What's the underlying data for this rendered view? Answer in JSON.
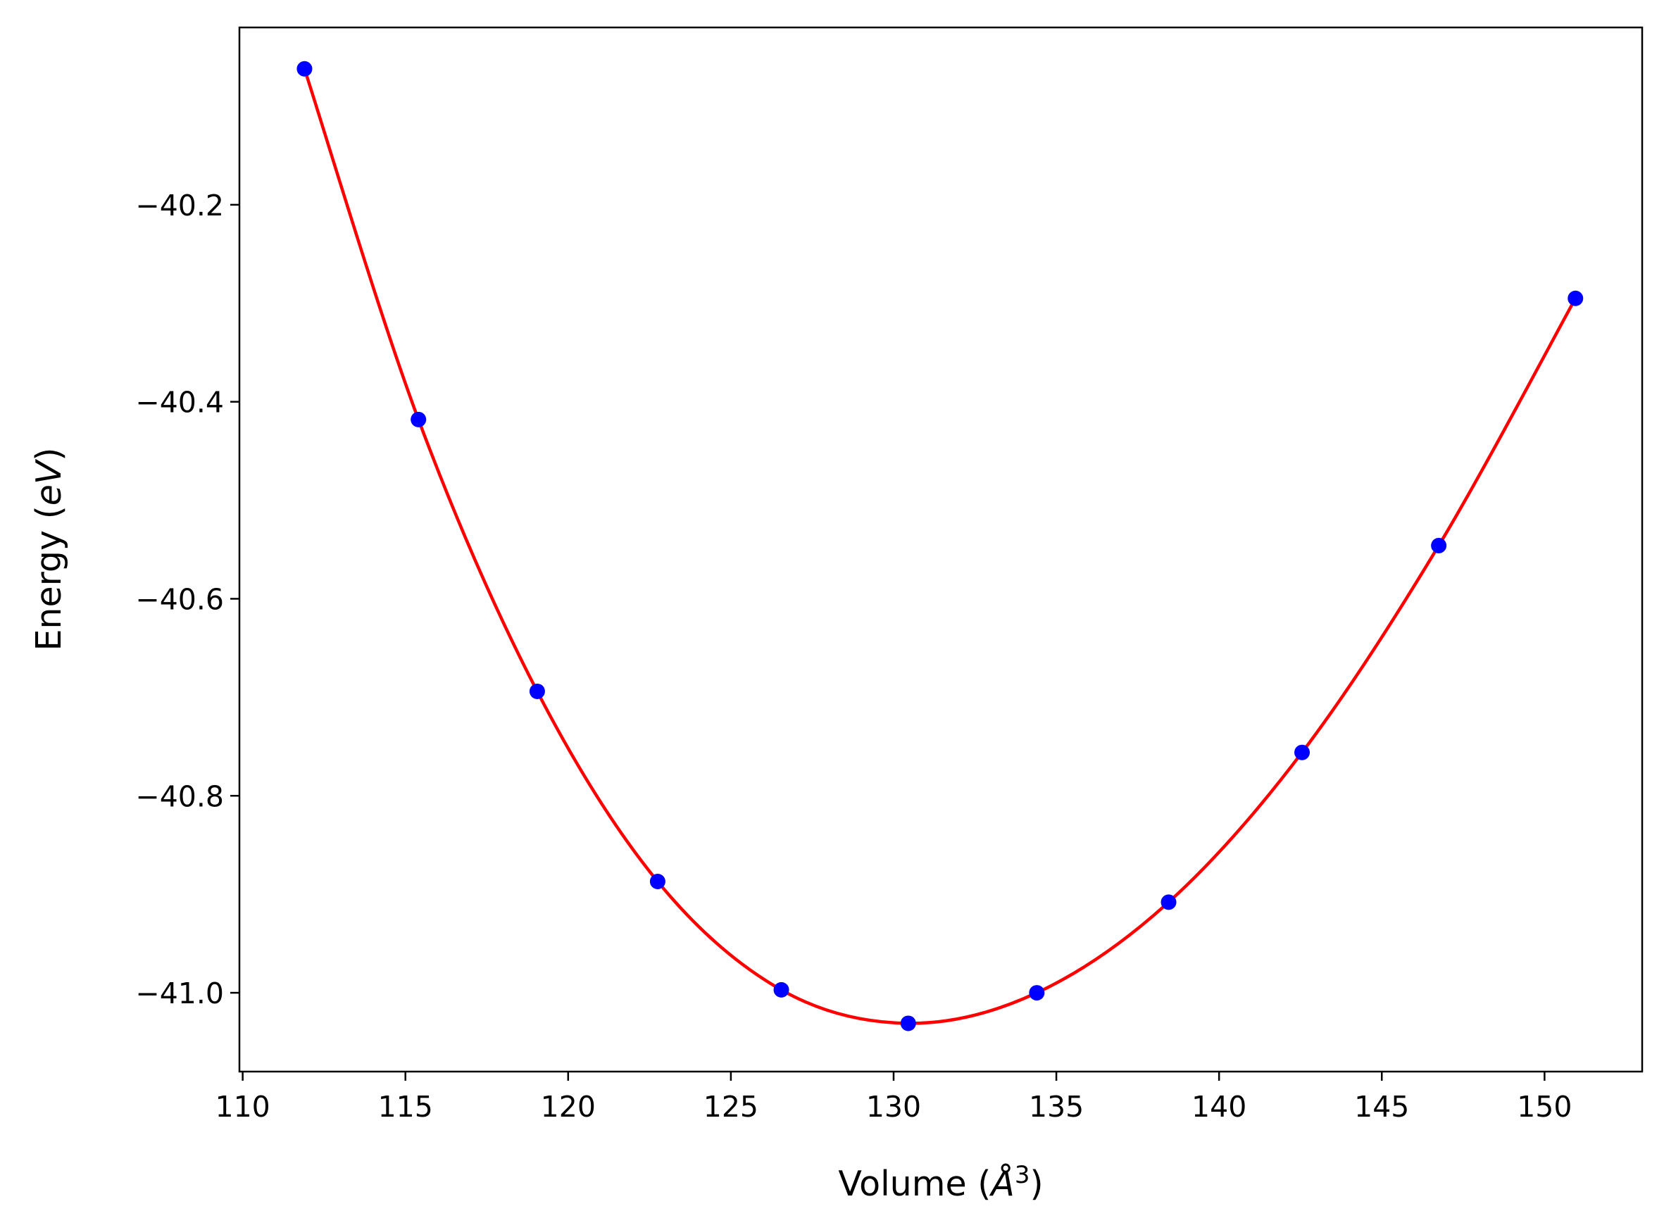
{
  "chart_data": {
    "type": "scatter",
    "xlabel": "Volume",
    "xlabel_unit_symbol": "Å",
    "xlabel_unit_power": "3",
    "ylabel": "Energy",
    "ylabel_unit": "eV",
    "xlim": [
      109.9,
      153.0
    ],
    "ylim": [
      -41.08,
      -40.02
    ],
    "x_ticks": [
      110,
      115,
      120,
      125,
      130,
      135,
      140,
      145,
      150
    ],
    "y_ticks": [
      -40.2,
      -40.4,
      -40.6,
      -40.8,
      -41.0
    ],
    "grid": false,
    "legend": "none",
    "series": [
      {
        "kind": "points",
        "color": "#0000ff",
        "x": [
          111.9,
          115.4,
          119.05,
          122.75,
          126.55,
          130.45,
          134.4,
          138.45,
          142.55,
          146.75,
          150.95
        ],
        "y": [
          -40.062,
          -40.418,
          -40.694,
          -40.887,
          -40.997,
          -41.031,
          -41.0,
          -40.908,
          -40.756,
          -40.546,
          -40.295
        ]
      },
      {
        "kind": "fit-curve",
        "color": "#ff0000"
      }
    ]
  }
}
